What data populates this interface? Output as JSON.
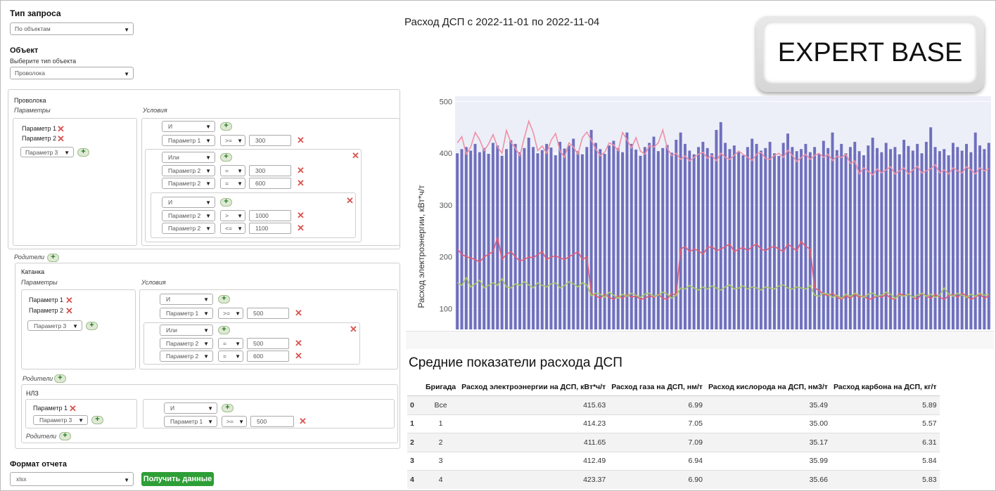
{
  "left": {
    "query_type_label": "Тип запроса",
    "query_type_value": "По объектам",
    "object_label": "Объект",
    "object_type_prompt": "Выберите тип объекта",
    "object_type_value": "Проволока",
    "wire": {
      "title": "Проволока",
      "params_label": "Параметры",
      "conditions_label": "Условия",
      "params": [
        "Параметр 1",
        "Параметр 2"
      ],
      "param_select": "Параметр 3",
      "cond_op": "И",
      "cond1": {
        "param": "Параметр 1",
        "cmp": ">=",
        "value": "300"
      },
      "group1": {
        "op": "Или",
        "rows": [
          {
            "param": "Параметр 2",
            "cmp": "=",
            "value": "300"
          },
          {
            "param": "Параметр 2",
            "cmp": "=",
            "value": "600"
          }
        ]
      },
      "group2": {
        "op": "И",
        "rows": [
          {
            "param": "Параметр 2",
            "cmp": ">",
            "value": "1000"
          },
          {
            "param": "Параметр 2",
            "cmp": "<=",
            "value": "1100"
          }
        ]
      }
    },
    "parents_label": "Родители",
    "katanka": {
      "title": "Катанка",
      "params_label": "Параметры",
      "conditions_label": "Условия",
      "params": [
        "Параметр 1",
        "Параметр 2"
      ],
      "param_select": "Параметр 3",
      "cond_op": "И",
      "cond1": {
        "param": "Параметр 1",
        "cmp": ">=",
        "value": "500"
      },
      "group1": {
        "op": "Или",
        "rows": [
          {
            "param": "Параметр 2",
            "cmp": "=",
            "value": "500"
          },
          {
            "param": "Параметр 2",
            "cmp": "=",
            "value": "600"
          }
        ]
      }
    },
    "nlz": {
      "title": "НЛЗ",
      "param": "Параметр 1",
      "param_select": "Параметр 3",
      "cond_op": "И",
      "cond1": {
        "param": "Параметр 1",
        "cmp": ">=",
        "value": "500"
      }
    },
    "report_format_label": "Формат отчета",
    "report_format_value": "xlsx",
    "get_data_button": "Получить данные"
  },
  "chart_title": "Расход ДСП с 2022-11-01 по 2022-11-04",
  "logo_text": "EXPERT BASE",
  "chart_data": {
    "type": "bar",
    "ylabel": "Расход электроэнергии, кВт*ч/т",
    "yticks": [
      100,
      200,
      300,
      400,
      500
    ],
    "ylim": [
      60,
      510
    ],
    "series": [
      {
        "values": [
          400,
          408,
          412,
          405,
          418,
          402,
          410,
          399,
          420,
          415,
          395,
          408,
          425,
          418,
          402,
          410,
          430,
          412,
          400,
          406,
          418,
          411,
          396,
          422,
          409,
          415,
          428,
          404,
          398,
          412,
          445,
          420,
          408,
          399,
          415,
          424,
          410,
          402,
          440,
          418,
          407,
          395,
          412,
          420,
          432,
          404,
          410,
          416,
          401,
          426,
          440,
          418,
          405,
          398,
          412,
          422,
          410,
          400,
          445,
          460,
          420,
          408,
          415,
          402,
          396,
          412,
          428,
          418,
          405,
          410,
          422,
          400,
          395,
          420,
          438,
          412,
          404,
          408,
          418,
          402,
          412,
          398,
          424,
          410,
          440,
          406,
          418,
          400,
          412,
          422,
          404,
          396,
          415,
          430,
          410,
          402,
          420,
          408,
          412,
          398,
          426,
          414,
          405,
          418,
          400,
          422,
          450,
          412,
          404,
          408,
          396,
          420,
          412,
          405,
          418,
          402,
          440,
          415,
          408,
          420
        ],
        "color": "#6f6fbe"
      },
      {
        "values": [
          420,
          432,
          398,
          412,
          440,
          426,
          405,
          418,
          436,
          412,
          400,
          444,
          421,
          410,
          395,
          430,
          462,
          440,
          405,
          414,
          400,
          425,
          438,
          404,
          392,
          420,
          412,
          398,
          430,
          441,
          425,
          408,
          395,
          402,
          420,
          416,
          405,
          440,
          426,
          410,
          430,
          404,
          398,
          415,
          412,
          420,
          445,
          410,
          395,
          400,
          388,
          395,
          385,
          392,
          398,
          402,
          390,
          396,
          385,
          400,
          392,
          388,
          396,
          404,
          398,
          392,
          386,
          398,
          402,
          390,
          388,
          396,
          400,
          392,
          406,
          396,
          384,
          392,
          398,
          388,
          396,
          400,
          392,
          398,
          386,
          394,
          392,
          398,
          380,
          385,
          360,
          372,
          365,
          358,
          370,
          362,
          368,
          374,
          360,
          366,
          372,
          360,
          368,
          375,
          362,
          366,
          370,
          378,
          362,
          368,
          360,
          372,
          366,
          362,
          374,
          368,
          360,
          372,
          366,
          370
        ],
        "color": "#f090a8"
      },
      {
        "values": [
          215,
          205,
          200,
          198,
          195,
          190,
          200,
          205,
          210,
          238,
          195,
          205,
          210,
          200,
          192,
          195,
          200,
          198,
          205,
          210,
          195,
          200,
          202,
          198,
          195,
          200,
          205,
          210,
          195,
          200,
          130,
          125,
          120,
          128,
          122,
          118,
          125,
          120,
          128,
          122,
          125,
          118,
          120,
          125,
          122,
          128,
          120,
          118,
          130,
          125,
          215,
          220,
          210,
          215,
          212,
          205,
          218,
          220,
          212,
          215,
          220,
          225,
          210,
          215,
          218,
          212,
          220,
          225,
          215,
          212,
          218,
          220,
          215,
          210,
          225,
          218,
          212,
          230,
          220,
          215,
          140,
          135,
          128,
          125,
          130,
          122,
          118,
          125,
          120,
          128,
          122,
          125,
          118,
          120,
          125,
          122,
          128,
          120,
          118,
          130,
          125,
          128,
          122,
          118,
          130,
          125,
          120,
          128,
          122,
          118,
          125,
          128,
          122,
          130,
          125,
          118,
          122,
          128,
          120,
          125
        ],
        "color": "#e35b73"
      },
      {
        "values": [
          150,
          145,
          160,
          142,
          148,
          155,
          140,
          145,
          150,
          145,
          158,
          142,
          140,
          148,
          145,
          152,
          146,
          140,
          150,
          145,
          142,
          148,
          150,
          140,
          145,
          152,
          148,
          142,
          150,
          146,
          125,
          130,
          128,
          122,
          132,
          126,
          120,
          128,
          124,
          130,
          126,
          122,
          128,
          130,
          124,
          126,
          132,
          128,
          120,
          126,
          140,
          138,
          145,
          140,
          136,
          142,
          138,
          144,
          140,
          136,
          142,
          146,
          138,
          140,
          144,
          138,
          142,
          140,
          136,
          142,
          140,
          138,
          144,
          146,
          140,
          138,
          142,
          140,
          138,
          145,
          126,
          124,
          130,
          128,
          122,
          126,
          120,
          128,
          124,
          130,
          126,
          122,
          128,
          130,
          124,
          126,
          132,
          128,
          120,
          126,
          124,
          128,
          122,
          126,
          130,
          124,
          128,
          122,
          126,
          140,
          128,
          124,
          130,
          126,
          122,
          128,
          124,
          130,
          126,
          128
        ],
        "color": "#a8c866"
      }
    ]
  },
  "table": {
    "title": "Средние показатели расхода ДСП",
    "headers": [
      "",
      "Бригада",
      "Расход электроэнергии на ДСП, кВт*ч/т",
      "Расход газа на ДСП, нм/т",
      "Расход кислорода на ДСП, нм3/т",
      "Расход карбона на ДСП, кг/т"
    ],
    "rows": [
      {
        "idx": "0",
        "brigade": "Все",
        "elec": "415.63",
        "gas": "6.99",
        "oxygen": "35.49",
        "carbon": "5.89"
      },
      {
        "idx": "1",
        "brigade": "1",
        "elec": "414.23",
        "gas": "7.05",
        "oxygen": "35.00",
        "carbon": "5.57"
      },
      {
        "idx": "2",
        "brigade": "2",
        "elec": "411.65",
        "gas": "7.09",
        "oxygen": "35.17",
        "carbon": "6.31"
      },
      {
        "idx": "3",
        "brigade": "3",
        "elec": "412.49",
        "gas": "6.94",
        "oxygen": "35.99",
        "carbon": "5.84"
      },
      {
        "idx": "4",
        "brigade": "4",
        "elec": "423.37",
        "gas": "6.90",
        "oxygen": "35.66",
        "carbon": "5.83"
      }
    ]
  }
}
